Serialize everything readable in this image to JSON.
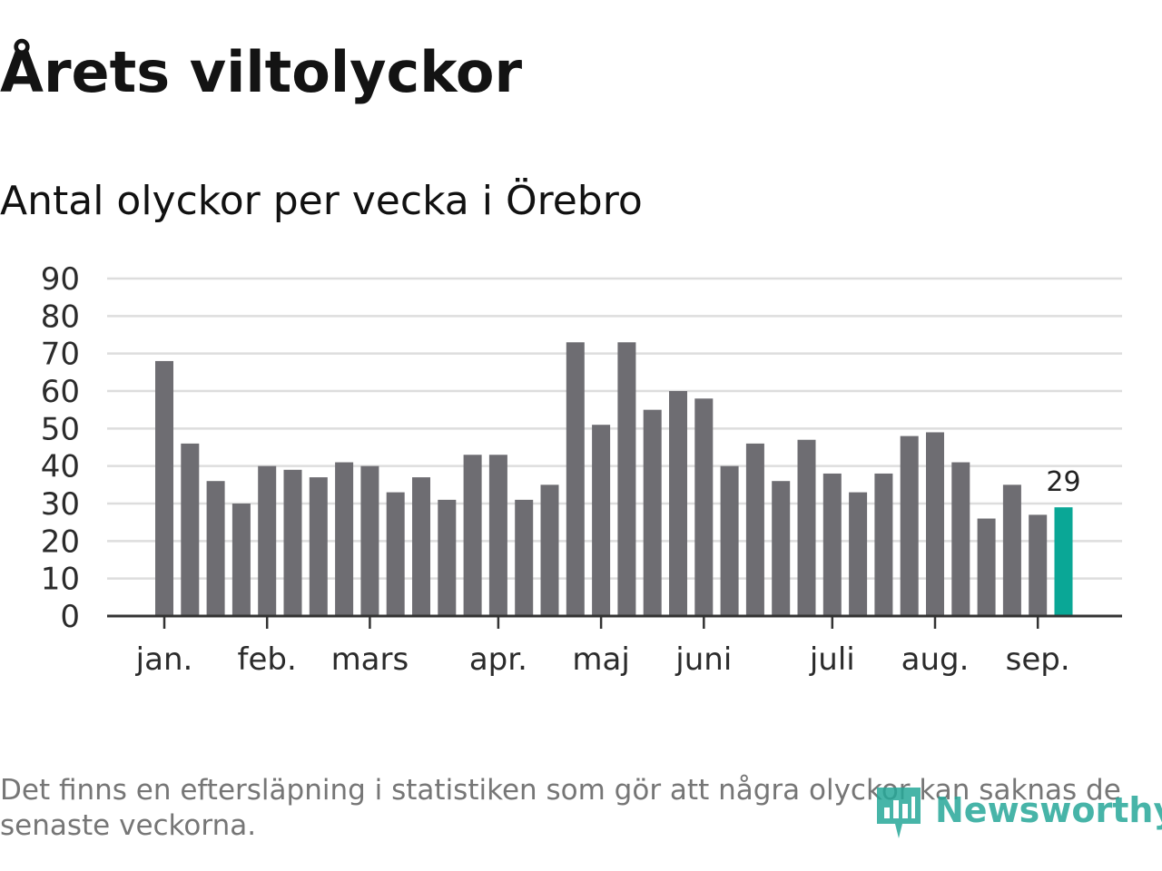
{
  "title": "Årets viltolyckor",
  "subtitle": "Antal olyckor per vecka i Örebro",
  "footnote": "Det finns en eftersläpning i statistiken som gör att några olyckor kan saknas de senaste veckorna.",
  "logo": {
    "text": "Newsworthy",
    "icon": "newsworthy-logo-icon",
    "color": "#27a899"
  },
  "chart_data": {
    "type": "bar",
    "ylim": [
      0,
      90
    ],
    "yticks": [
      0,
      10,
      20,
      30,
      40,
      50,
      60,
      70,
      80,
      90
    ],
    "grid": true,
    "month_labels": [
      "jan.",
      "feb.",
      "mars",
      "apr.",
      "maj",
      "juni",
      "juli",
      "aug.",
      "sep."
    ],
    "month_label_bar_index": [
      0,
      4,
      8,
      13,
      17,
      21,
      26,
      30,
      34
    ],
    "values": [
      68,
      46,
      36,
      30,
      40,
      39,
      37,
      41,
      40,
      33,
      37,
      31,
      43,
      43,
      31,
      35,
      73,
      51,
      73,
      55,
      60,
      58,
      40,
      46,
      36,
      47,
      38,
      33,
      38,
      48,
      49,
      41,
      26,
      35,
      27,
      29
    ],
    "highlight_index": 35,
    "highlight_label": "29",
    "colors": {
      "bar": "#6e6d72",
      "highlight": "#0aa796",
      "grid": "#dddddd",
      "axis": "#333333",
      "tick_text": "#2b2b2b"
    }
  }
}
